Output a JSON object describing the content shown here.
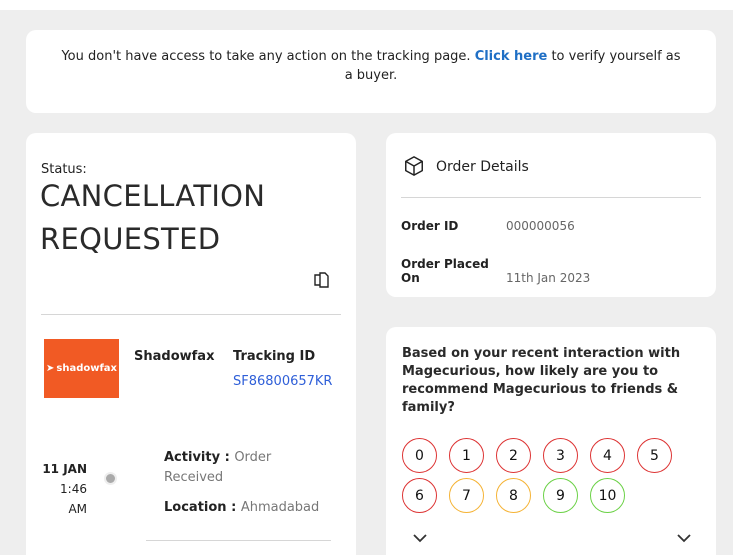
{
  "banner": {
    "text_before": "You don't have access to take any action on the tracking page. ",
    "link": "Click here",
    "text_after": " to verify yourself as a buyer."
  },
  "status": {
    "label": "Status:",
    "value": "CANCELLATION REQUESTED"
  },
  "shipment": {
    "logo_text": "shadowfax",
    "carrier": "Shadowfax",
    "tracking_label": "Tracking ID",
    "tracking_id": "SF86800657KR"
  },
  "timeline": [
    {
      "date": "11 JAN",
      "time": "1:46 AM",
      "activity_label": "Activity : ",
      "activity": "Order Received",
      "location_label": "Location : ",
      "location": "Ahmadabad"
    }
  ],
  "order_details": {
    "title": "Order Details",
    "rows": [
      {
        "label": "Order ID",
        "value": "000000056"
      },
      {
        "label": "Order Placed On",
        "value": "11th Jan 2023"
      }
    ]
  },
  "nps": {
    "question": "Based on your recent interaction with Magecurious, how likely are you to recommend Magecurious to friends & family?",
    "options": [
      "0",
      "1",
      "2",
      "3",
      "4",
      "5",
      "6",
      "7",
      "8",
      "9",
      "10"
    ],
    "colors": {
      "detractor": "#dd3333",
      "passive": "#f5b335",
      "promoter": "#6bd146"
    }
  }
}
